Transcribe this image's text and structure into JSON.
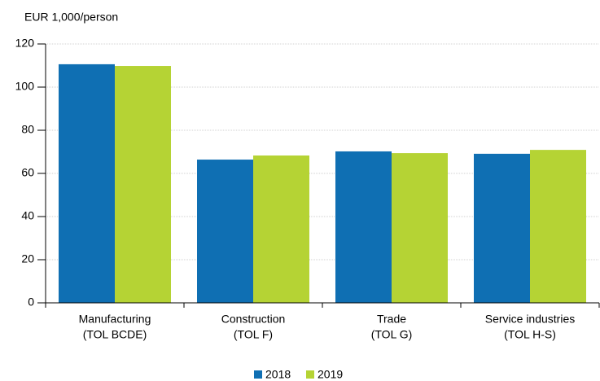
{
  "chart_data": {
    "type": "bar",
    "y_label": "EUR 1,000/person",
    "categories": [
      [
        "Manufacturing",
        "(TOL BCDE)"
      ],
      [
        "Construction",
        "(TOL F)"
      ],
      [
        "Trade",
        "(TOL G)"
      ],
      [
        "Service industries",
        "(TOL H-S)"
      ]
    ],
    "series": [
      {
        "name": "2018",
        "color": "#0f6fb3",
        "values": [
          110.6,
          66.4,
          70.2,
          69.1
        ]
      },
      {
        "name": "2019",
        "color": "#b5d334",
        "values": [
          109.8,
          68.3,
          69.4,
          70.9
        ]
      }
    ],
    "ylim": [
      0,
      120
    ],
    "yticks": [
      0,
      20,
      40,
      60,
      80,
      100,
      120
    ],
    "grid": true,
    "legend": "bottom"
  }
}
